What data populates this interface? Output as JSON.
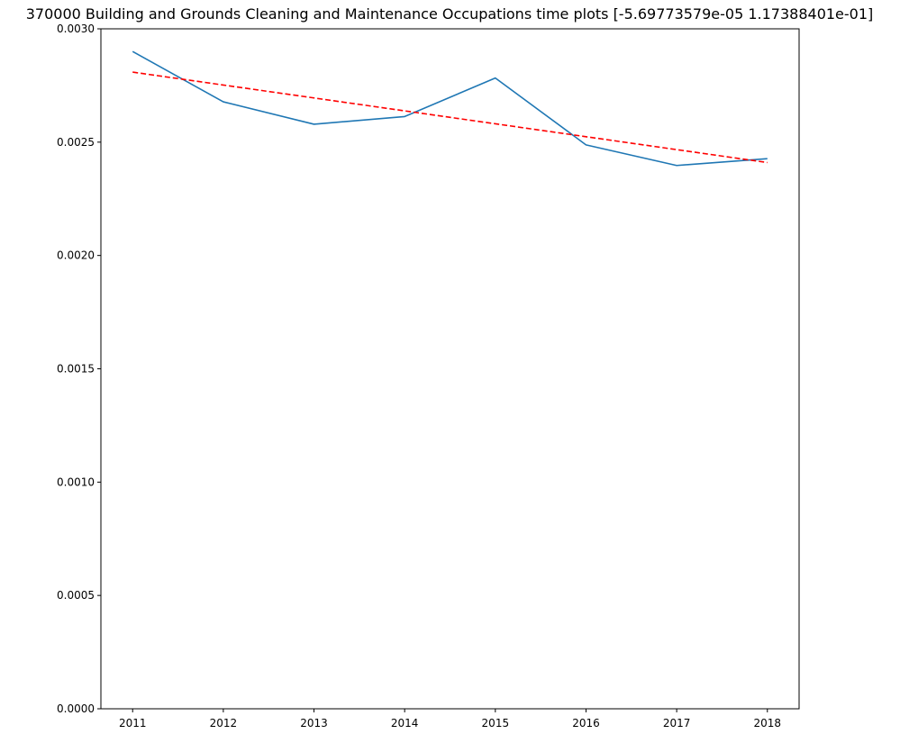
{
  "chart_data": {
    "type": "line",
    "title": "370000 Building and Grounds Cleaning and Maintenance Occupations time plots [-5.69773579e-05  1.17388401e-01]",
    "xlabel": "",
    "ylabel": "",
    "x": [
      2011,
      2012,
      2013,
      2014,
      2015,
      2016,
      2017,
      2018
    ],
    "x_tick_labels": [
      "2011",
      "2012",
      "2013",
      "2014",
      "2015",
      "2016",
      "2017",
      "2018"
    ],
    "ylim": [
      0.0,
      0.003
    ],
    "y_ticks": [
      0.0,
      0.0005,
      0.001,
      0.0015,
      0.002,
      0.0025,
      0.003
    ],
    "y_tick_labels": [
      "0.0000",
      "0.0005",
      "0.0010",
      "0.0015",
      "0.0020",
      "0.0025",
      "0.0030"
    ],
    "grid": false,
    "legend": "none",
    "series": [
      {
        "style": "solid",
        "color": "#1f77b4",
        "values": [
          0.0029,
          0.002678,
          0.002579,
          0.002613,
          0.002783,
          0.002488,
          0.002397,
          0.002427
        ]
      },
      {
        "style": "dashed",
        "color": "#ff0000",
        "values": [
          0.002809,
          0.002752,
          0.002695,
          0.002638,
          0.002581,
          0.002524,
          0.002467,
          0.00241
        ]
      }
    ]
  }
}
